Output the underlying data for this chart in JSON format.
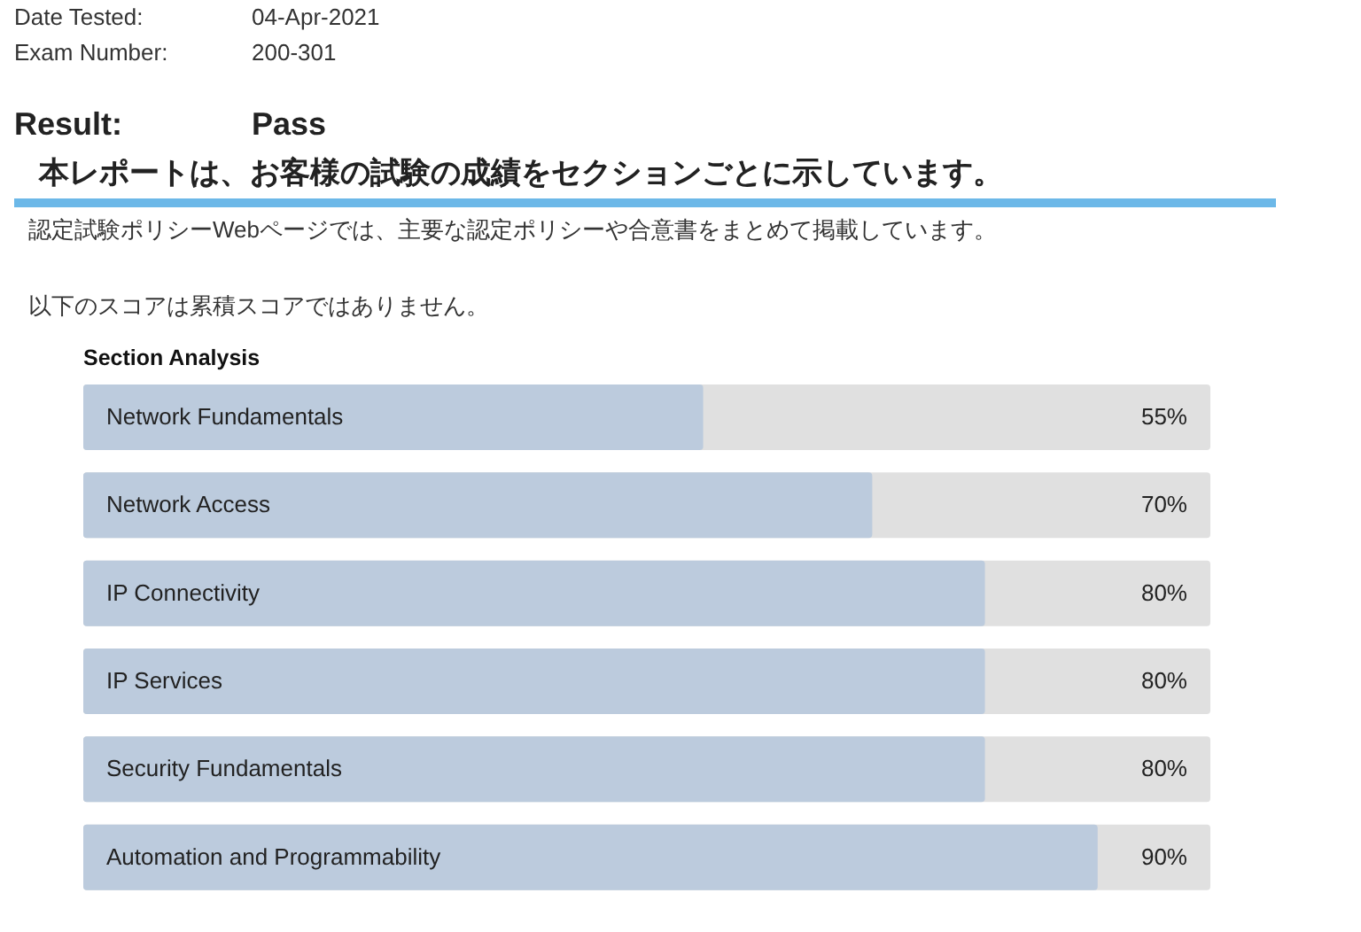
{
  "chart_data": {
    "type": "bar",
    "orientation": "horizontal",
    "title": "Section Analysis",
    "annotations": [
      "Date Tested:",
      "04-Apr-2021",
      "Exam Number:",
      "200-301",
      "Result:",
      "Pass",
      "本レポートは、お客様の試験の成績をセクションごとに示しています。",
      "認定試験ポリシーWebページでは、主要な認定ポリシーや合意書をまとめて掲載しています。",
      "以下のスコアは累積スコアではありません。"
    ],
    "categories": [
      "Network Fundamentals",
      "Network Access",
      "IP Connectivity",
      "IP Services",
      "Security Fundamentals",
      "Automation and Programmability"
    ],
    "values": [
      55,
      70,
      80,
      80,
      80,
      90
    ],
    "value_labels": [
      "55%",
      "70%",
      "80%",
      "80%",
      "80%",
      "90%"
    ],
    "color": "#bccbdd",
    "xlim": [
      0,
      100
    ]
  }
}
